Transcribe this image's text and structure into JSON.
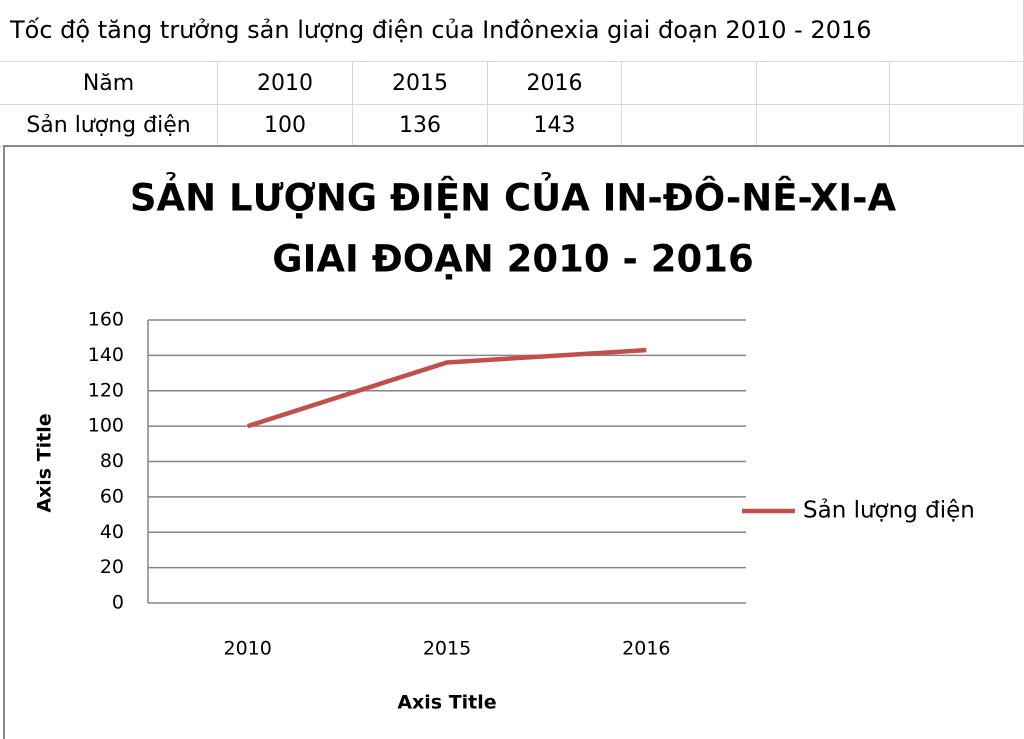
{
  "sheet": {
    "caption": "Tốc độ tăng trưởng sản lượng điện của Inđônexia  giai đoạn 2010 - 2016",
    "table": {
      "rows": [
        [
          "Năm",
          "2010",
          "2015",
          "2016"
        ],
        [
          "Sản lượng điện",
          "100",
          "136",
          "143"
        ]
      ]
    }
  },
  "chart_data": {
    "type": "line",
    "title": "SẢN LƯỢNG ĐIỆN CỦA IN-ĐÔ-NÊ-XI-A",
    "subtitle": "GIAI ĐOẠN 2010 - 2016",
    "x_label": "Axis Title",
    "y_label": "Axis Title",
    "categories": [
      "2010",
      "2015",
      "2016"
    ],
    "series": [
      {
        "name": "Sản lượng điện",
        "color": "#c0504d",
        "values": [
          100,
          136,
          143
        ]
      }
    ],
    "ylim": [
      0,
      160
    ],
    "yticks": [
      0,
      20,
      40,
      60,
      80,
      100,
      120,
      140,
      160
    ],
    "grid": true,
    "legend": "right"
  }
}
